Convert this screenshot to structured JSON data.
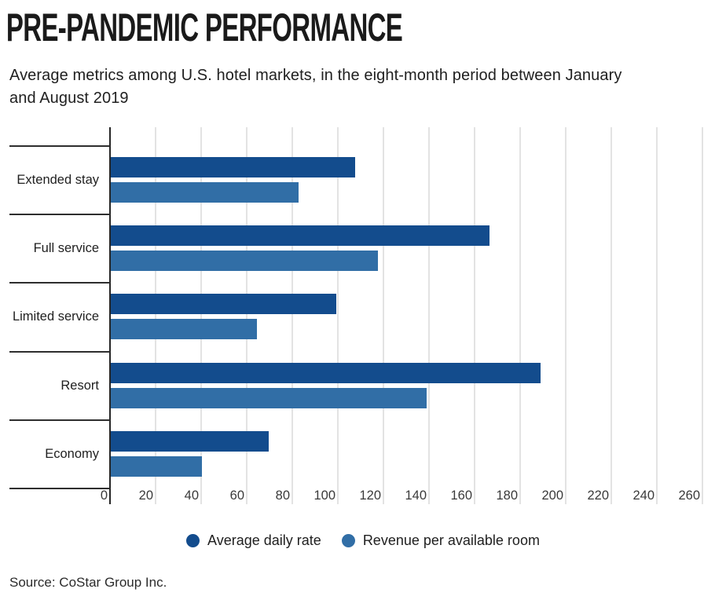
{
  "header": {
    "title": "PRE-PANDEMIC PERFORMANCE",
    "subtitle_line1": "Average metrics among U.S. hotel markets, in the eight-month period between January",
    "subtitle_line2": "and August 2019"
  },
  "chart_data": {
    "type": "bar",
    "orientation": "horizontal",
    "title": "PRE-PANDEMIC PERFORMANCE",
    "subtitle": "Average metrics among U.S. hotel markets, in the eight-month period between January and August 2019",
    "categories": [
      "Extended stay",
      "Full service",
      "Limited service",
      "Resort",
      "Economy"
    ],
    "series": [
      {
        "name": "Average daily rate",
        "color": "#134c8d",
        "values": [
          107.5,
          166.4,
          99.3,
          189.0,
          69.5
        ]
      },
      {
        "name": "Revenue per available room",
        "color": "#316ea6",
        "values": [
          82.7,
          117.5,
          64.4,
          139.0,
          40.4
        ]
      }
    ],
    "x_axis": {
      "ticks": [
        0,
        20,
        40,
        60,
        80,
        100,
        120,
        140,
        160,
        180,
        200,
        220,
        240,
        260
      ],
      "min": 0,
      "max": 269
    },
    "grid": true,
    "legend_position": "bottom"
  },
  "source": "Source: CoStar Group Inc."
}
